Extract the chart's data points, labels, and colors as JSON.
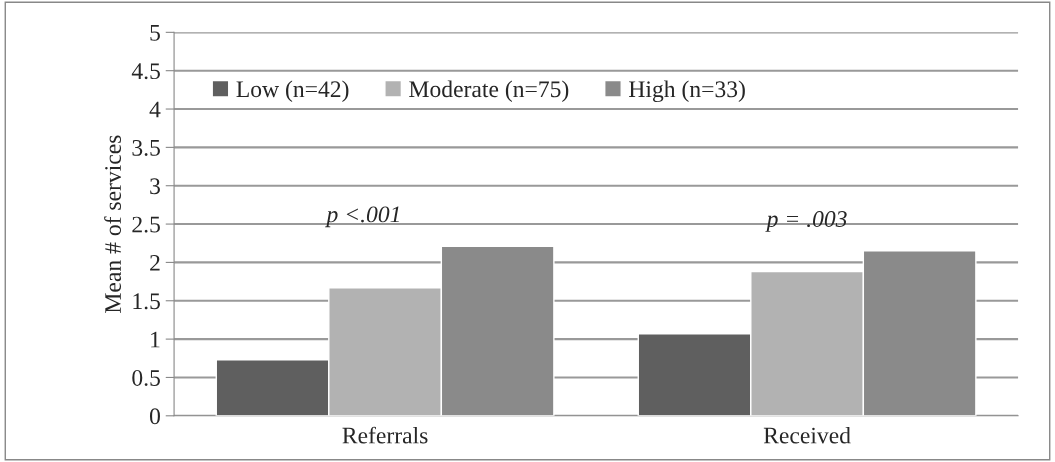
{
  "chart_data": {
    "type": "bar",
    "ylabel": "Mean # of services",
    "categories": [
      "Referrals",
      "Received"
    ],
    "series": [
      {
        "name": "Low (n=42)",
        "color": "#5f5f5f",
        "values": [
          0.73,
          1.07
        ]
      },
      {
        "name": "Moderate (n=75)",
        "color": "#b2b2b2",
        "values": [
          1.67,
          1.88
        ]
      },
      {
        "name": "High (n=33)",
        "color": "#8a8a8a",
        "values": [
          2.21,
          2.15
        ]
      }
    ],
    "annotations": [
      "p <.001",
      "p = .003"
    ],
    "ylim": [
      0,
      5
    ],
    "yticks": [
      0,
      0.5,
      1,
      1.5,
      2,
      2.5,
      3,
      3.5,
      4,
      4.5,
      5
    ],
    "grid": "y",
    "legend": "top left"
  }
}
